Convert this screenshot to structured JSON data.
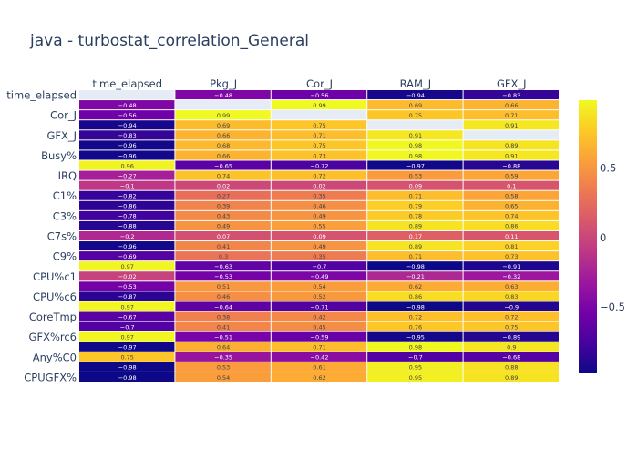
{
  "chart_data": {
    "type": "heatmap",
    "title": "java - turbostat_correlation_General",
    "columns": [
      "time_elapsed",
      "Pkg_J",
      "Cor_J",
      "RAM_J",
      "GFX_J"
    ],
    "row_labels_shown": [
      "time_elapsed",
      "Cor_J",
      "GFX_J",
      "Busy%",
      "IRQ",
      "C1%",
      "C3%",
      "C7s%",
      "C9%",
      "CPU%c1",
      "CPU%c6",
      "CoreTmp",
      "GFX%rc6",
      "Any%C0",
      "CPUGFX%"
    ],
    "rows": [
      {
        "label": "time_elapsed",
        "values": [
          null,
          -0.48,
          -0.56,
          -0.94,
          -0.83
        ]
      },
      {
        "label": "",
        "values": [
          -0.48,
          null,
          0.99,
          0.69,
          0.66
        ]
      },
      {
        "label": "Cor_J",
        "values": [
          -0.56,
          0.99,
          null,
          0.75,
          0.71
        ]
      },
      {
        "label": "",
        "values": [
          -0.94,
          0.69,
          0.75,
          null,
          0.91
        ]
      },
      {
        "label": "GFX_J",
        "values": [
          -0.83,
          0.66,
          0.71,
          0.91,
          null
        ]
      },
      {
        "label": "",
        "values": [
          -0.96,
          0.68,
          0.75,
          0.98,
          0.89
        ]
      },
      {
        "label": "Busy%",
        "values": [
          -0.96,
          0.66,
          0.73,
          0.98,
          0.91
        ]
      },
      {
        "label": "",
        "values": [
          0.96,
          -0.65,
          -0.72,
          -0.97,
          -0.88
        ]
      },
      {
        "label": "IRQ",
        "values": [
          -0.27,
          0.74,
          0.72,
          0.53,
          0.59
        ]
      },
      {
        "label": "",
        "values": [
          -0.1,
          0.02,
          0.02,
          0.09,
          0.1
        ]
      },
      {
        "label": "C1%",
        "values": [
          -0.82,
          0.27,
          0.35,
          0.71,
          0.58
        ]
      },
      {
        "label": "",
        "values": [
          -0.86,
          0.39,
          0.46,
          0.79,
          0.65
        ]
      },
      {
        "label": "C3%",
        "values": [
          -0.78,
          0.43,
          0.49,
          0.78,
          0.74
        ]
      },
      {
        "label": "",
        "values": [
          -0.88,
          0.49,
          0.55,
          0.89,
          0.86
        ]
      },
      {
        "label": "C7s%",
        "values": [
          -0.2,
          0.07,
          0.09,
          0.17,
          0.11
        ]
      },
      {
        "label": "",
        "values": [
          -0.96,
          0.41,
          0.49,
          0.89,
          0.81
        ]
      },
      {
        "label": "C9%",
        "values": [
          -0.69,
          0.3,
          0.35,
          0.71,
          0.73
        ]
      },
      {
        "label": "",
        "values": [
          0.97,
          -0.63,
          -0.7,
          -0.98,
          -0.91
        ]
      },
      {
        "label": "CPU%c1",
        "values": [
          -0.02,
          -0.53,
          -0.49,
          -0.21,
          -0.32
        ]
      },
      {
        "label": "",
        "values": [
          -0.53,
          0.51,
          0.54,
          0.62,
          0.63
        ]
      },
      {
        "label": "CPU%c6",
        "values": [
          -0.87,
          0.46,
          0.52,
          0.86,
          0.83
        ]
      },
      {
        "label": "",
        "values": [
          0.97,
          -0.64,
          -0.71,
          -0.98,
          -0.9
        ]
      },
      {
        "label": "CoreTmp",
        "values": [
          -0.67,
          0.38,
          0.42,
          0.72,
          0.72
        ]
      },
      {
        "label": "",
        "values": [
          -0.7,
          0.41,
          0.45,
          0.76,
          0.75
        ]
      },
      {
        "label": "GFX%rc6",
        "values": [
          0.97,
          -0.51,
          -0.59,
          -0.95,
          -0.89
        ]
      },
      {
        "label": "",
        "values": [
          -0.97,
          0.64,
          0.71,
          0.98,
          0.9
        ]
      },
      {
        "label": "Any%C0",
        "values": [
          0.75,
          -0.35,
          -0.42,
          -0.7,
          -0.68
        ]
      },
      {
        "label": "",
        "values": [
          -0.98,
          0.53,
          0.61,
          0.95,
          0.88
        ]
      },
      {
        "label": "CPUGFX%",
        "values": [
          -0.98,
          0.54,
          0.62,
          0.95,
          0.89
        ]
      }
    ],
    "colorscale": [
      "#0d0887",
      "#46039f",
      "#7201a8",
      "#9c179e",
      "#bd3786",
      "#d8576b",
      "#ed7953",
      "#fb9f3a",
      "#fdca26",
      "#f0f921"
    ],
    "zmin": -0.98,
    "zmax": 0.99,
    "missing_color": "#e5ecf6",
    "colorbar_ticks": [
      0.5,
      0,
      -0.5
    ],
    "colorbar_tick_labels": [
      "0.5",
      "0",
      "−0.5"
    ]
  }
}
